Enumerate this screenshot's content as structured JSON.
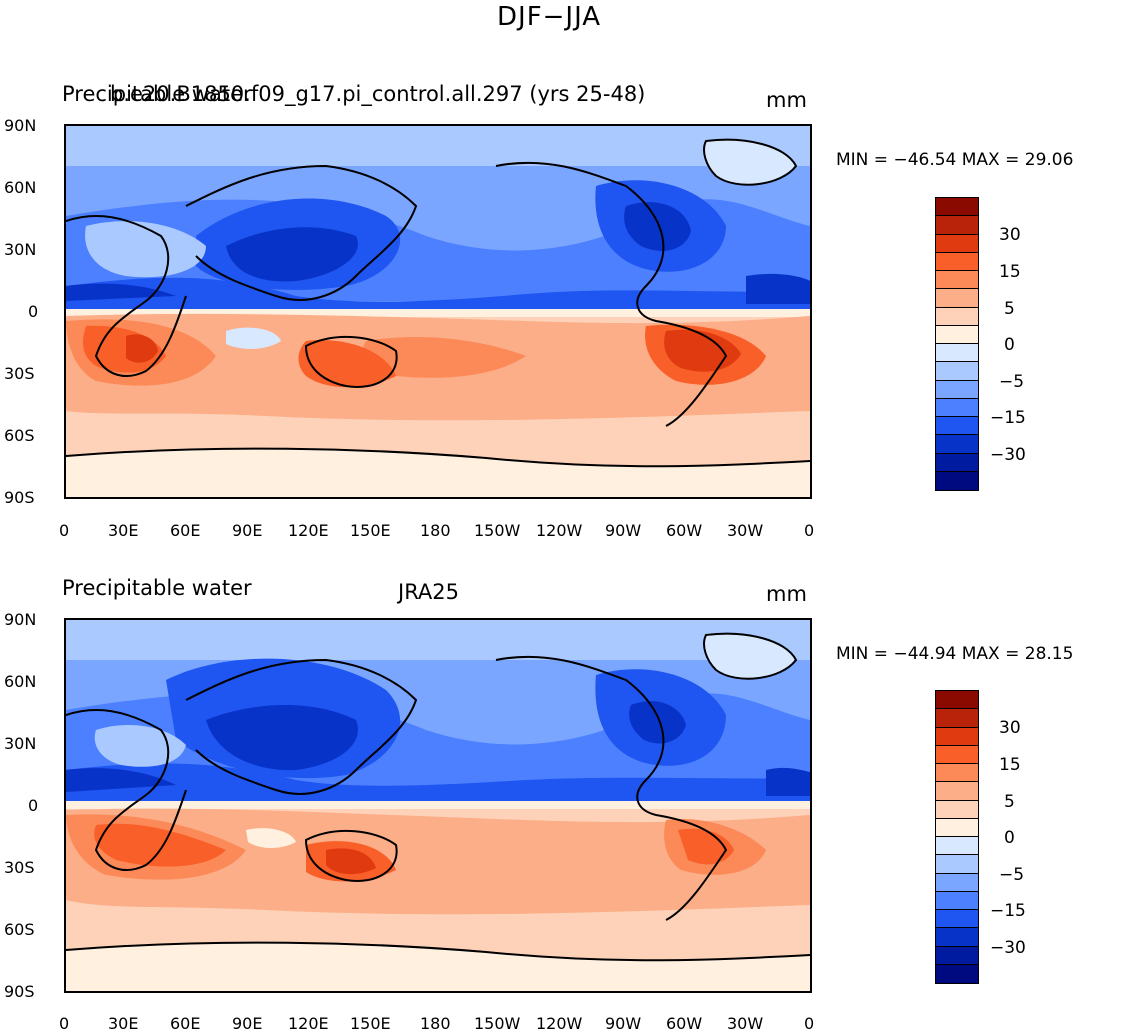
{
  "figure": {
    "title": "DJF−JJA"
  },
  "panels": [
    {
      "left_label": "Precipitable water",
      "center_label": "b.e20.B1850.f09_g17.pi_control.all.297 (yrs 25-48)",
      "right_label": "mm",
      "min_max": "MIN = −46.54 MAX =   29.06"
    },
    {
      "left_label": "Precipitable water",
      "center_label": "JRA25",
      "right_label": "mm",
      "min_max": "MIN = −44.94 MAX =   28.15"
    }
  ],
  "lat_labels": [
    "90N",
    "60N",
    "30N",
    "0",
    "30S",
    "60S",
    "90S"
  ],
  "lon_labels": [
    "0",
    "30E",
    "60E",
    "90E",
    "120E",
    "150E",
    "180",
    "150W",
    "120W",
    "90W",
    "60W",
    "30W",
    "0"
  ],
  "colorbar": {
    "labels": [
      "30",
      "15",
      "5",
      "0",
      "−5",
      "−15",
      "−30"
    ],
    "colors": [
      "#8b0a00",
      "#b8230a",
      "#e03a10",
      "#f95f28",
      "#fb8a58",
      "#fcae88",
      "#fdd2b8",
      "#fff0e0",
      "#d8e9ff",
      "#a9c9ff",
      "#7aa6ff",
      "#4c80ff",
      "#1f55f0",
      "#0833c8",
      "#001aa0",
      "#000a80"
    ]
  }
}
